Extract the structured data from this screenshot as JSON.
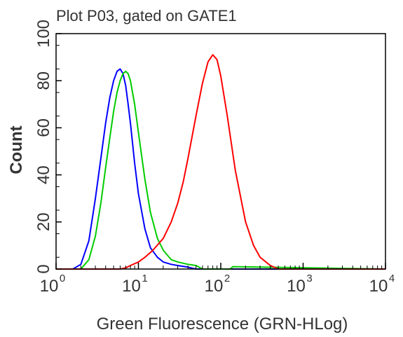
{
  "chart_data": {
    "type": "line",
    "title": "Plot P03, gated on GATE1",
    "xlabel": "Green Fluorescence (GRN-HLog)",
    "ylabel": "Count",
    "x_scale": "log",
    "xlim": [
      1,
      10000
    ],
    "ylim": [
      0,
      100
    ],
    "x_ticks": [
      {
        "value": 1,
        "base": "10",
        "exp": "0"
      },
      {
        "value": 10,
        "base": "10",
        "exp": "1"
      },
      {
        "value": 100,
        "base": "10",
        "exp": "2"
      },
      {
        "value": 1000,
        "base": "10",
        "exp": "3"
      },
      {
        "value": 10000,
        "base": "10",
        "exp": "4"
      }
    ],
    "y_ticks": [
      "0",
      "20",
      "40",
      "60",
      "80",
      "100"
    ],
    "grid": false,
    "series": [
      {
        "color": "#0000ff",
        "x": [
          1,
          1.6,
          2.0,
          2.5,
          3.0,
          3.5,
          4.0,
          4.5,
          5.0,
          5.5,
          6.0,
          6.5,
          7.0,
          7.5,
          8.0,
          9.0,
          10,
          12,
          14,
          17,
          20,
          25,
          30,
          40,
          50,
          10000
        ],
        "y": [
          0,
          0,
          2,
          12,
          30,
          47,
          62,
          73,
          80,
          84,
          85,
          83,
          78,
          70,
          62,
          45,
          32,
          17,
          9,
          5,
          3,
          2,
          1.5,
          0.8,
          0,
          0
        ]
      },
      {
        "color": "#00cc00",
        "x": [
          1,
          2.0,
          2.5,
          3.0,
          3.5,
          4.0,
          4.5,
          5.0,
          5.5,
          6.0,
          6.5,
          7.0,
          7.5,
          8.0,
          9.0,
          10,
          12,
          14,
          17,
          20,
          25,
          30,
          40,
          50,
          60,
          130,
          140,
          10000
        ],
        "y": [
          0,
          0,
          4,
          14,
          28,
          43,
          56,
          67,
          75,
          80,
          83,
          84,
          83,
          80,
          70,
          58,
          38,
          24,
          13,
          8,
          4,
          3,
          2,
          1.5,
          0,
          0,
          1,
          0
        ]
      },
      {
        "color": "#ff0000",
        "x": [
          1,
          6,
          7,
          8,
          10,
          12,
          15,
          20,
          25,
          30,
          35,
          40,
          50,
          60,
          70,
          80,
          90,
          100,
          120,
          150,
          200,
          250,
          300,
          400,
          500,
          10000
        ],
        "y": [
          0,
          0,
          0.5,
          1.5,
          3,
          5,
          8,
          13,
          20,
          28,
          37,
          47,
          65,
          79,
          88,
          91,
          89,
          82,
          65,
          42,
          20,
          10,
          5,
          1.5,
          0,
          0
        ]
      }
    ]
  }
}
